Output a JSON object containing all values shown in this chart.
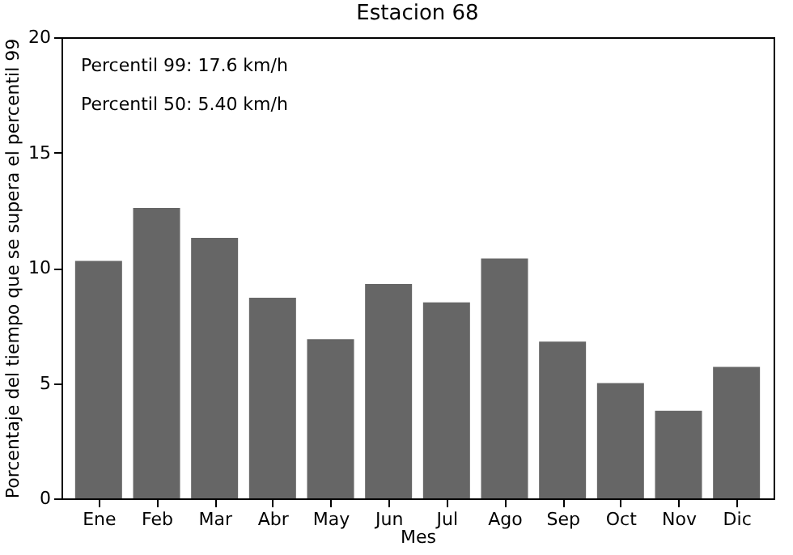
{
  "chart_data": {
    "type": "bar",
    "title": "Estacion 68",
    "xlabel": "Mes",
    "ylabel": "Porcentaje del tiempo que se supera el percentil 99",
    "categories": [
      "Ene",
      "Feb",
      "Mar",
      "Abr",
      "May",
      "Jun",
      "Jul",
      "Ago",
      "Sep",
      "Oct",
      "Nov",
      "Dic"
    ],
    "values": [
      10.3,
      12.6,
      11.3,
      8.7,
      6.9,
      9.3,
      8.5,
      10.4,
      6.8,
      5.0,
      3.8,
      5.7
    ],
    "color": "#666666",
    "ylim": [
      0,
      20
    ],
    "yticks": [
      0,
      5,
      10,
      15,
      20
    ],
    "grid": false,
    "annotations": [
      "Percentil 99: 17.6 km/h",
      "Percentil 50: 5.40 km/h"
    ]
  }
}
